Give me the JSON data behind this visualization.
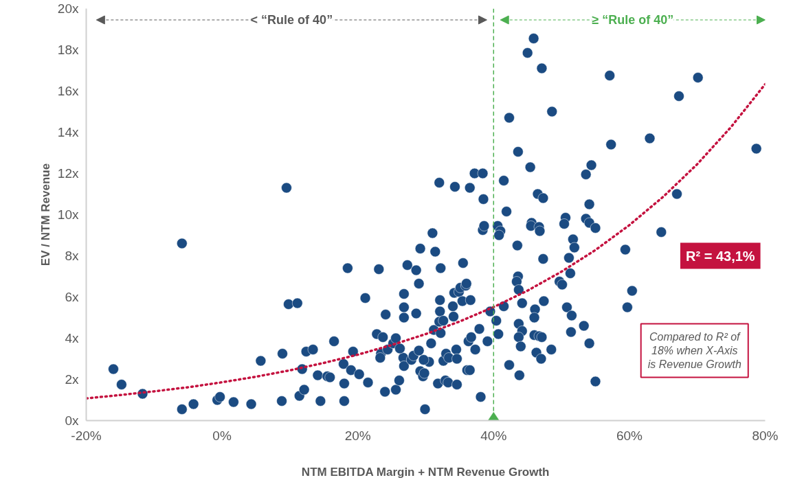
{
  "chart_data": {
    "type": "scatter",
    "xlabel": "NTM EBITDA Margin + NTM Revenue Growth",
    "ylabel": "EV / NTM Revenue",
    "xlim": [
      -20,
      80
    ],
    "ylim": [
      0,
      20
    ],
    "xticks": [
      {
        "value": -20,
        "label": "-20%"
      },
      {
        "value": 0,
        "label": "0%"
      },
      {
        "value": 20,
        "label": "20%"
      },
      {
        "value": 40,
        "label": "40%"
      },
      {
        "value": 60,
        "label": "60%"
      },
      {
        "value": 80,
        "label": "80%"
      }
    ],
    "yticks": [
      {
        "value": 0,
        "label": "0x"
      },
      {
        "value": 2,
        "label": "2x"
      },
      {
        "value": 4,
        "label": "4x"
      },
      {
        "value": 6,
        "label": "6x"
      },
      {
        "value": 8,
        "label": "8x"
      },
      {
        "value": 10,
        "label": "10x"
      },
      {
        "value": 12,
        "label": "12x"
      },
      {
        "value": 14,
        "label": "14x"
      },
      {
        "value": 16,
        "label": "16x"
      },
      {
        "value": 18,
        "label": "18x"
      },
      {
        "value": 20,
        "label": "20x"
      }
    ],
    "marker": "circle",
    "series": [
      {
        "color": "#1b4b82",
        "x": [
          -16.0,
          -14.8,
          -11.7,
          -5.9,
          -5.9,
          -4.2,
          -0.7,
          -0.3,
          1.7,
          4.3,
          5.7,
          8.8,
          8.9,
          9.5,
          9.8,
          11.1,
          11.4,
          11.8,
          12.1,
          12.4,
          13.4,
          14.1,
          14.5,
          15.5,
          15.9,
          16.5,
          17.9,
          18.0,
          18.0,
          18.5,
          19.0,
          19.3,
          20.2,
          21.1,
          21.5,
          23.1,
          22.8,
          23.4,
          23.3,
          23.7,
          24.0,
          24.4,
          25.2,
          25.6,
          25.6,
          26.1,
          26.8,
          26.8,
          26.8,
          26.7,
          26.8,
          27.3,
          27.9,
          28.2,
          28.6,
          28.6,
          29.0,
          29.0,
          29.2,
          29.2,
          29.6,
          29.8,
          29.9,
          30.5,
          30.8,
          31.0,
          31.2,
          31.4,
          31.8,
          32.0,
          32.0,
          32.1,
          32.1,
          32.2,
          32.2,
          32.6,
          32.6,
          32.9,
          33.0,
          33.3,
          33.4,
          34.0,
          34.1,
          34.2,
          34.3,
          34.5,
          34.6,
          34.6,
          34.9,
          35.1,
          35.4,
          35.5,
          35.9,
          36.0,
          36.1,
          36.3,
          36.5,
          36.5,
          36.6,
          36.7,
          37.2,
          37.9,
          38.1,
          38.4,
          38.5,
          38.4,
          38.6,
          39.1,
          39.5,
          40.4,
          40.7,
          37.3,
          24.1,
          45.9,
          45.0,
          47.1,
          57.1,
          48.6,
          42.3,
          57.3,
          43.6,
          45.4,
          54.4,
          53.6,
          41.5,
          46.5,
          47.3,
          54.1,
          41.9,
          50.6,
          50.4,
          53.6,
          54.1,
          55.0,
          45.6,
          45.5,
          46.7,
          40.6,
          41.0,
          40.8,
          46.8,
          51.7,
          51.9,
          43.5,
          47.3,
          51.1,
          51.3,
          49.7,
          50.1,
          43.6,
          43.4,
          43.7,
          41.5,
          44.2,
          47.4,
          46.1,
          46.0,
          50.8,
          51.5,
          43.7,
          44.2,
          43.7,
          46.0,
          46.7,
          47.1,
          51.4,
          53.3,
          44.0,
          46.3,
          47.0,
          48.5,
          54.1,
          42.3,
          43.8,
          55.0,
          70.1,
          67.3,
          63.0,
          78.7,
          67.0,
          64.7,
          59.4,
          60.4,
          59.7,
          26.2,
          29.7
        ],
        "values": [
          2.5,
          1.75,
          1.3,
          8.6,
          0.55,
          0.8,
          1.0,
          1.15,
          0.9,
          0.8,
          2.9,
          0.95,
          3.25,
          11.3,
          5.65,
          5.7,
          1.2,
          2.5,
          1.5,
          3.35,
          3.45,
          2.2,
          0.95,
          2.15,
          2.1,
          3.85,
          2.75,
          1.8,
          0.95,
          7.4,
          2.45,
          3.35,
          2.25,
          5.95,
          1.85,
          7.35,
          4.2,
          3.25,
          3.05,
          4.05,
          1.4,
          3.45,
          3.75,
          4.0,
          1.5,
          1.95,
          6.15,
          5.0,
          5.5,
          3.05,
          2.65,
          7.55,
          2.95,
          3.15,
          7.3,
          5.2,
          3.4,
          6.65,
          8.35,
          2.4,
          2.15,
          2.3,
          0.55,
          2.85,
          3.75,
          9.1,
          4.4,
          8.2,
          1.8,
          4.8,
          11.55,
          5.85,
          5.3,
          4.25,
          7.4,
          4.85,
          2.9,
          1.95,
          3.25,
          1.85,
          3.05,
          5.55,
          5.05,
          6.2,
          11.35,
          3.45,
          3.0,
          1.75,
          6.25,
          6.45,
          5.8,
          7.65,
          6.55,
          6.65,
          2.45,
          3.85,
          11.3,
          2.45,
          5.85,
          4.05,
          12.0,
          4.45,
          1.15,
          12.0,
          10.75,
          9.25,
          9.45,
          3.85,
          5.3,
          4.85,
          4.2,
          3.45,
          5.15,
          18.55,
          17.85,
          17.1,
          16.75,
          15.0,
          14.7,
          13.4,
          13.05,
          12.3,
          12.4,
          11.95,
          11.65,
          11.0,
          10.8,
          10.5,
          10.15,
          9.85,
          9.55,
          9.8,
          9.6,
          9.35,
          9.6,
          9.45,
          9.4,
          9.45,
          9.2,
          9.0,
          9.2,
          8.8,
          8.4,
          8.5,
          7.85,
          7.9,
          7.15,
          6.75,
          6.6,
          7.0,
          6.75,
          6.35,
          5.55,
          5.7,
          5.8,
          5.4,
          5.0,
          5.5,
          5.1,
          4.7,
          4.35,
          4.05,
          4.15,
          4.1,
          4.05,
          4.3,
          4.6,
          3.6,
          3.3,
          3.0,
          3.45,
          3.75,
          2.7,
          2.2,
          1.9,
          16.65,
          15.75,
          13.7,
          13.2,
          11.0,
          9.15,
          8.3,
          6.3,
          5.5,
          3.5,
          2.95
        ]
      },
      {
        "type": "scatter",
        "color": "#4caf50",
        "marker": "diamond",
        "x": [
          40
        ],
        "values": [
          0
        ]
      },
      {
        "type": "line",
        "color": "#c4123f",
        "line_style": "dotted",
        "marker": "none",
        "x": [
          -20,
          -15,
          -10,
          -5,
          0,
          5,
          10,
          15,
          20,
          25,
          30,
          35,
          40,
          45,
          50,
          55,
          60,
          65,
          70,
          75,
          80
        ],
        "values": [
          1.08,
          1.24,
          1.42,
          1.62,
          1.86,
          2.13,
          2.44,
          2.8,
          3.2,
          3.67,
          4.2,
          4.81,
          5.51,
          6.31,
          7.23,
          8.28,
          9.49,
          10.87,
          12.45,
          14.26,
          16.33
        ]
      }
    ],
    "ref_lines": [
      {
        "axis": "x",
        "value": 40,
        "color": "#4caf50",
        "line_style": "dashed"
      }
    ],
    "annotations": [
      "< “Rule of 40”",
      "≥ “Rule of 40”",
      "R² = 43,1%",
      "Compared to R² of 18% when X-Axis is Revenue Growth"
    ]
  }
}
